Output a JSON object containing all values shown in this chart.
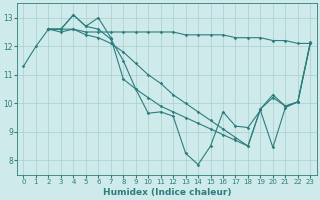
{
  "line1_x": [
    2,
    3,
    4,
    5,
    6,
    7,
    8,
    9,
    10,
    11,
    12,
    13,
    14,
    15,
    16,
    17,
    18,
    19,
    20,
    21,
    22,
    23
  ],
  "line1_y": [
    12.6,
    12.6,
    12.6,
    12.5,
    12.5,
    12.5,
    12.5,
    12.5,
    12.5,
    12.5,
    12.5,
    12.4,
    12.4,
    12.4,
    12.4,
    12.3,
    12.3,
    12.3,
    12.2,
    12.2,
    12.1,
    12.1
  ],
  "line2_x": [
    2,
    3,
    4,
    5,
    6,
    7,
    8,
    9,
    10,
    11,
    12,
    13,
    14,
    15,
    16,
    17,
    18,
    19,
    20,
    21,
    22,
    23
  ],
  "line2_y": [
    12.6,
    12.5,
    12.6,
    12.4,
    12.3,
    12.1,
    11.8,
    11.4,
    11.0,
    10.7,
    10.3,
    10.0,
    9.7,
    9.4,
    9.1,
    8.8,
    8.5,
    9.8,
    10.3,
    9.9,
    10.05,
    12.1
  ],
  "line3_x": [
    0,
    1,
    2,
    3,
    4,
    5,
    6,
    7,
    8,
    9,
    10,
    11,
    12,
    13,
    14,
    15,
    16,
    17,
    18,
    19,
    20,
    21,
    22,
    23
  ],
  "line3_y": [
    11.3,
    12.0,
    12.6,
    12.6,
    13.1,
    12.7,
    13.0,
    12.3,
    10.85,
    10.5,
    9.65,
    9.7,
    9.55,
    8.25,
    7.85,
    8.5,
    9.7,
    9.2,
    9.15,
    9.75,
    8.45,
    9.85,
    10.05,
    12.15
  ],
  "line4_x": [
    2,
    3,
    4,
    5,
    6,
    7,
    8,
    9,
    10,
    11,
    12,
    13,
    14,
    15,
    16,
    17,
    18,
    19,
    20,
    21,
    22,
    23
  ],
  "line4_y": [
    12.6,
    12.6,
    13.1,
    12.7,
    12.6,
    12.25,
    11.5,
    10.5,
    10.2,
    9.9,
    9.7,
    9.5,
    9.3,
    9.1,
    8.9,
    8.7,
    8.5,
    9.8,
    10.2,
    9.9,
    10.05,
    12.1
  ],
  "color": "#2d7d7d",
  "bg_color": "#ceeaea",
  "grid_color": "#aacece",
  "xlabel": "Humidex (Indice chaleur)",
  "xlim": [
    -0.5,
    23.5
  ],
  "ylim": [
    7.5,
    13.5
  ],
  "yticks": [
    8,
    9,
    10,
    11,
    12,
    13
  ],
  "xticks": [
    0,
    1,
    2,
    3,
    4,
    5,
    6,
    7,
    8,
    9,
    10,
    11,
    12,
    13,
    14,
    15,
    16,
    17,
    18,
    19,
    20,
    21,
    22,
    23
  ],
  "marker": "D",
  "markersize": 1.8,
  "linewidth": 0.8
}
